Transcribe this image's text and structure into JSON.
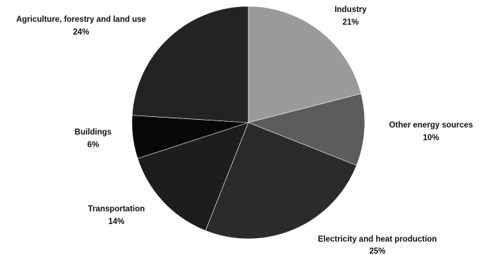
{
  "chart_data": {
    "type": "pie",
    "start_angle_deg": 0,
    "direction": "clockwise",
    "slices": [
      {
        "label": "Industry",
        "value": 21,
        "display": "21%",
        "color": "#9a9a9a"
      },
      {
        "label": "Other energy sources",
        "value": 10,
        "display": "10%",
        "color": "#5c5c5c"
      },
      {
        "label": "Electricity and heat production",
        "value": 25,
        "display": "25%",
        "color": "#2b2b2b"
      },
      {
        "label": "Transportation",
        "value": 14,
        "display": "14%",
        "color": "#1d1d1d"
      },
      {
        "label": "Buildings",
        "value": 6,
        "display": "6%",
        "color": "#080808"
      },
      {
        "label": "Agriculture, forestry and land use",
        "value": 24,
        "display": "24%",
        "color": "#232323"
      }
    ]
  }
}
